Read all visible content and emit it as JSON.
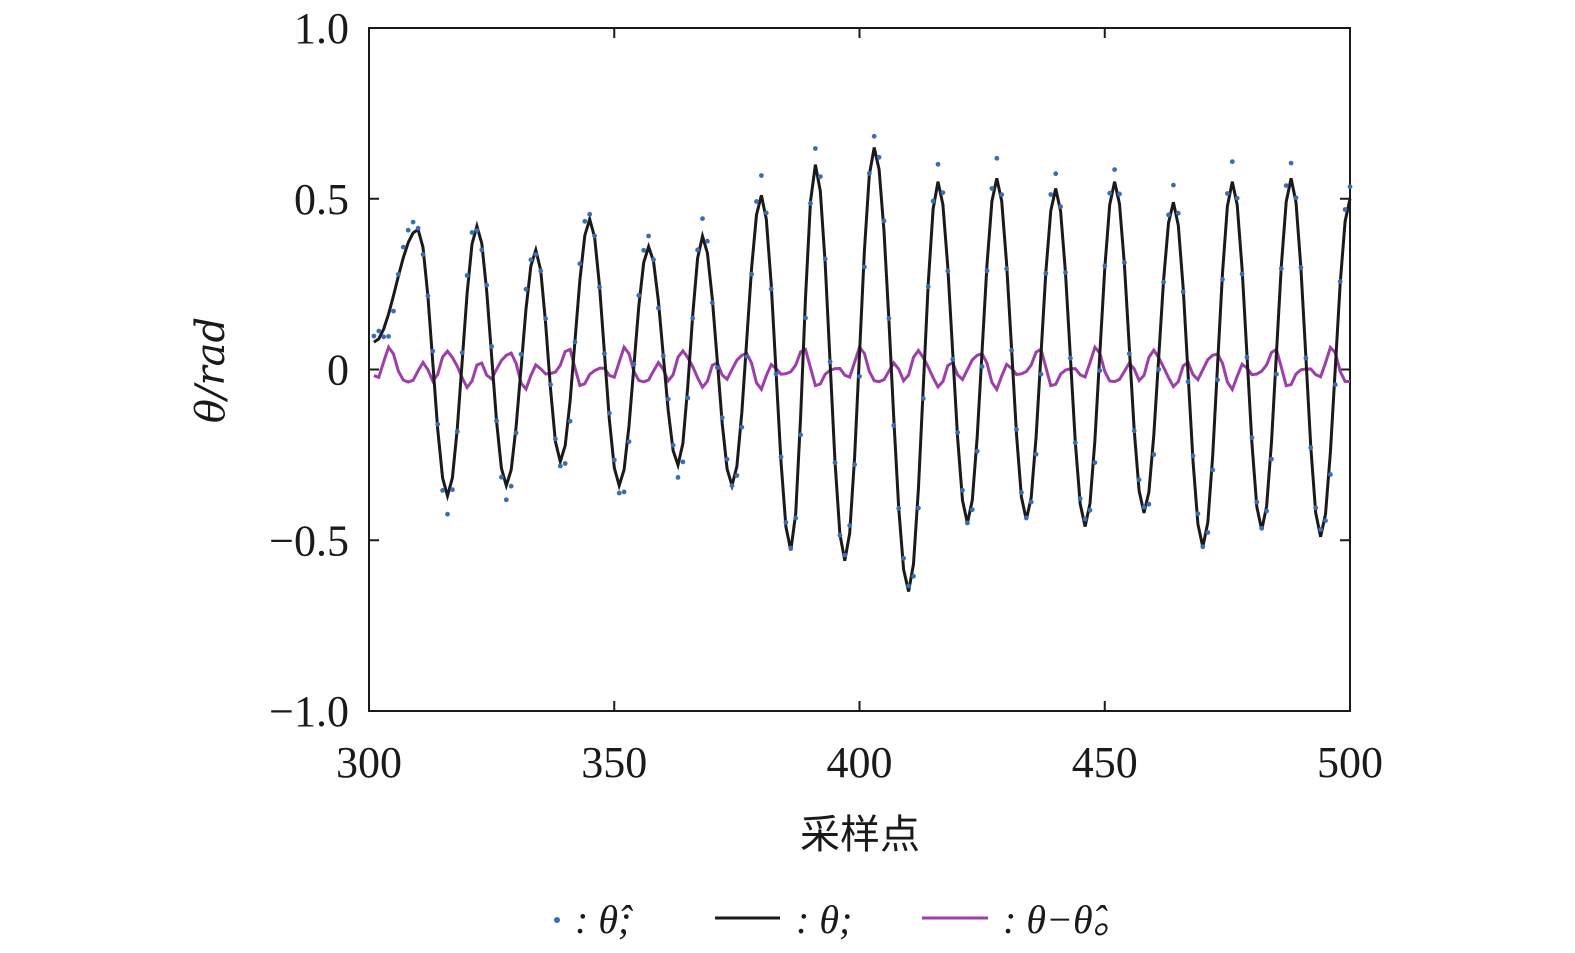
{
  "chart_data": {
    "type": "line",
    "xlabel": "采样点",
    "ylabel": "θ/rad",
    "xlim": [
      300,
      500
    ],
    "ylim": [
      -1.0,
      1.0
    ],
    "xticks": [
      300,
      350,
      400,
      450,
      500
    ],
    "xtick_labels": [
      "300",
      "350",
      "400",
      "450",
      "500"
    ],
    "yticks": [
      1.0,
      0.5,
      0,
      -0.5,
      -1.0
    ],
    "ytick_labels": [
      "1.0",
      "0.5",
      "0",
      "−0.5",
      "−1.0"
    ],
    "grid": false,
    "legend_position": "bottom",
    "period": 12,
    "x_start": 301,
    "x_end": 500,
    "series": [
      {
        "name": "θ̂",
        "legend_label": ": θ̂;",
        "style": "dots",
        "color": "#3a6eb4",
        "description_values": "estimate, tracks θ with small error"
      },
      {
        "name": "θ",
        "legend_label": ": θ;",
        "style": "line",
        "color": "#1a1a1a",
        "peaks": [
          {
            "x": 310,
            "y": 0.41
          },
          {
            "x": 316,
            "y": -0.37
          },
          {
            "x": 322,
            "y": 0.42
          },
          {
            "x": 328,
            "y": -0.34
          },
          {
            "x": 334,
            "y": 0.35
          },
          {
            "x": 339,
            "y": -0.27
          },
          {
            "x": 345,
            "y": 0.44
          },
          {
            "x": 351,
            "y": -0.34
          },
          {
            "x": 357,
            "y": 0.36
          },
          {
            "x": 363,
            "y": -0.28
          },
          {
            "x": 368,
            "y": 0.39
          },
          {
            "x": 374,
            "y": -0.34
          },
          {
            "x": 380,
            "y": 0.51
          },
          {
            "x": 386,
            "y": -0.53
          },
          {
            "x": 391,
            "y": 0.6
          },
          {
            "x": 397,
            "y": -0.56
          },
          {
            "x": 403,
            "y": 0.65
          },
          {
            "x": 410,
            "y": -0.65
          },
          {
            "x": 416,
            "y": 0.55
          },
          {
            "x": 422,
            "y": -0.45
          },
          {
            "x": 428,
            "y": 0.56
          },
          {
            "x": 434,
            "y": -0.44
          },
          {
            "x": 440,
            "y": 0.53
          },
          {
            "x": 446,
            "y": -0.46
          },
          {
            "x": 452,
            "y": 0.55
          },
          {
            "x": 458,
            "y": -0.42
          },
          {
            "x": 464,
            "y": 0.49
          },
          {
            "x": 470,
            "y": -0.52
          },
          {
            "x": 476,
            "y": 0.55
          },
          {
            "x": 482,
            "y": -0.47
          },
          {
            "x": 488,
            "y": 0.56
          },
          {
            "x": 494,
            "y": -0.49
          },
          {
            "x": 500,
            "y": 0.5
          }
        ],
        "start": {
          "x": 301,
          "y": 0.08
        }
      },
      {
        "name": "θ−θ̂",
        "legend_label": ": θ−θ̂。",
        "style": "line",
        "color": "#9c3fa8",
        "amplitude": 0.07
      }
    ]
  }
}
